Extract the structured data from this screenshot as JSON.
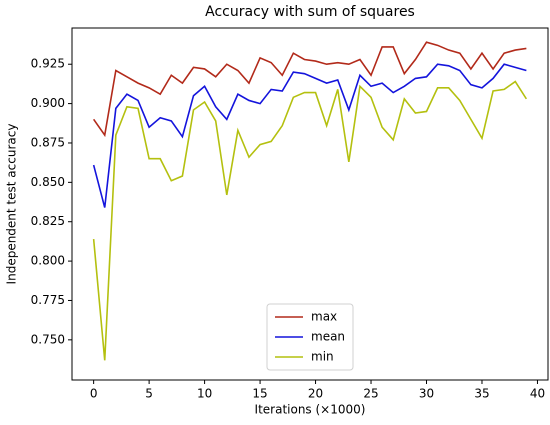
{
  "chart_data": {
    "type": "line",
    "title": "Accuracy with sum of squares",
    "xlabel": "Iterations (×1000)",
    "ylabel": "Independent test accuracy",
    "x": [
      0,
      1,
      2,
      3,
      4,
      5,
      6,
      7,
      8,
      9,
      10,
      11,
      12,
      13,
      14,
      15,
      16,
      17,
      18,
      19,
      20,
      21,
      22,
      23,
      24,
      25,
      26,
      27,
      28,
      29,
      30,
      31,
      32,
      33,
      34,
      35,
      36,
      37,
      38,
      39
    ],
    "series": [
      {
        "name": "max",
        "color": "#b22a1a",
        "values": [
          0.89,
          0.88,
          0.921,
          0.917,
          0.913,
          0.91,
          0.906,
          0.918,
          0.913,
          0.923,
          0.922,
          0.917,
          0.925,
          0.921,
          0.913,
          0.929,
          0.926,
          0.918,
          0.932,
          0.928,
          0.927,
          0.925,
          0.926,
          0.925,
          0.928,
          0.918,
          0.936,
          0.936,
          0.919,
          0.928,
          0.939,
          0.937,
          0.934,
          0.932,
          0.922,
          0.932,
          0.922,
          0.932,
          0.934,
          0.935
        ]
      },
      {
        "name": "mean",
        "color": "#1414dc",
        "values": [
          0.861,
          0.834,
          0.897,
          0.906,
          0.902,
          0.885,
          0.891,
          0.889,
          0.879,
          0.905,
          0.911,
          0.898,
          0.89,
          0.906,
          0.902,
          0.9,
          0.909,
          0.908,
          0.92,
          0.919,
          0.916,
          0.913,
          0.915,
          0.896,
          0.918,
          0.911,
          0.913,
          0.907,
          0.911,
          0.916,
          0.917,
          0.925,
          0.924,
          0.921,
          0.912,
          0.91,
          0.916,
          0.925,
          0.923,
          0.921
        ]
      },
      {
        "name": "min",
        "color": "#b4c00f",
        "values": [
          0.814,
          0.737,
          0.88,
          0.898,
          0.897,
          0.865,
          0.865,
          0.851,
          0.854,
          0.896,
          0.901,
          0.889,
          0.842,
          0.883,
          0.866,
          0.874,
          0.876,
          0.886,
          0.904,
          0.907,
          0.907,
          0.886,
          0.909,
          0.863,
          0.911,
          0.904,
          0.885,
          0.877,
          0.903,
          0.894,
          0.895,
          0.91,
          0.91,
          0.902,
          0.89,
          0.878,
          0.908,
          0.909,
          0.914,
          0.903
        ]
      }
    ],
    "xlim": [
      -1.95,
      40.95
    ],
    "xticks": [
      0,
      5,
      10,
      15,
      20,
      25,
      30,
      35,
      40
    ],
    "ylim": [
      0.7245,
      0.948
    ],
    "yticks": [
      {
        "value": 0.75,
        "label": "0.750"
      },
      0.775,
      {
        "value": 0.8,
        "label": "0.800"
      },
      0.825,
      {
        "value": 0.85,
        "label": "0.850"
      },
      0.875,
      {
        "value": 0.9,
        "label": "0.900"
      },
      0.925
    ],
    "legend": "lower center",
    "grid": false
  }
}
